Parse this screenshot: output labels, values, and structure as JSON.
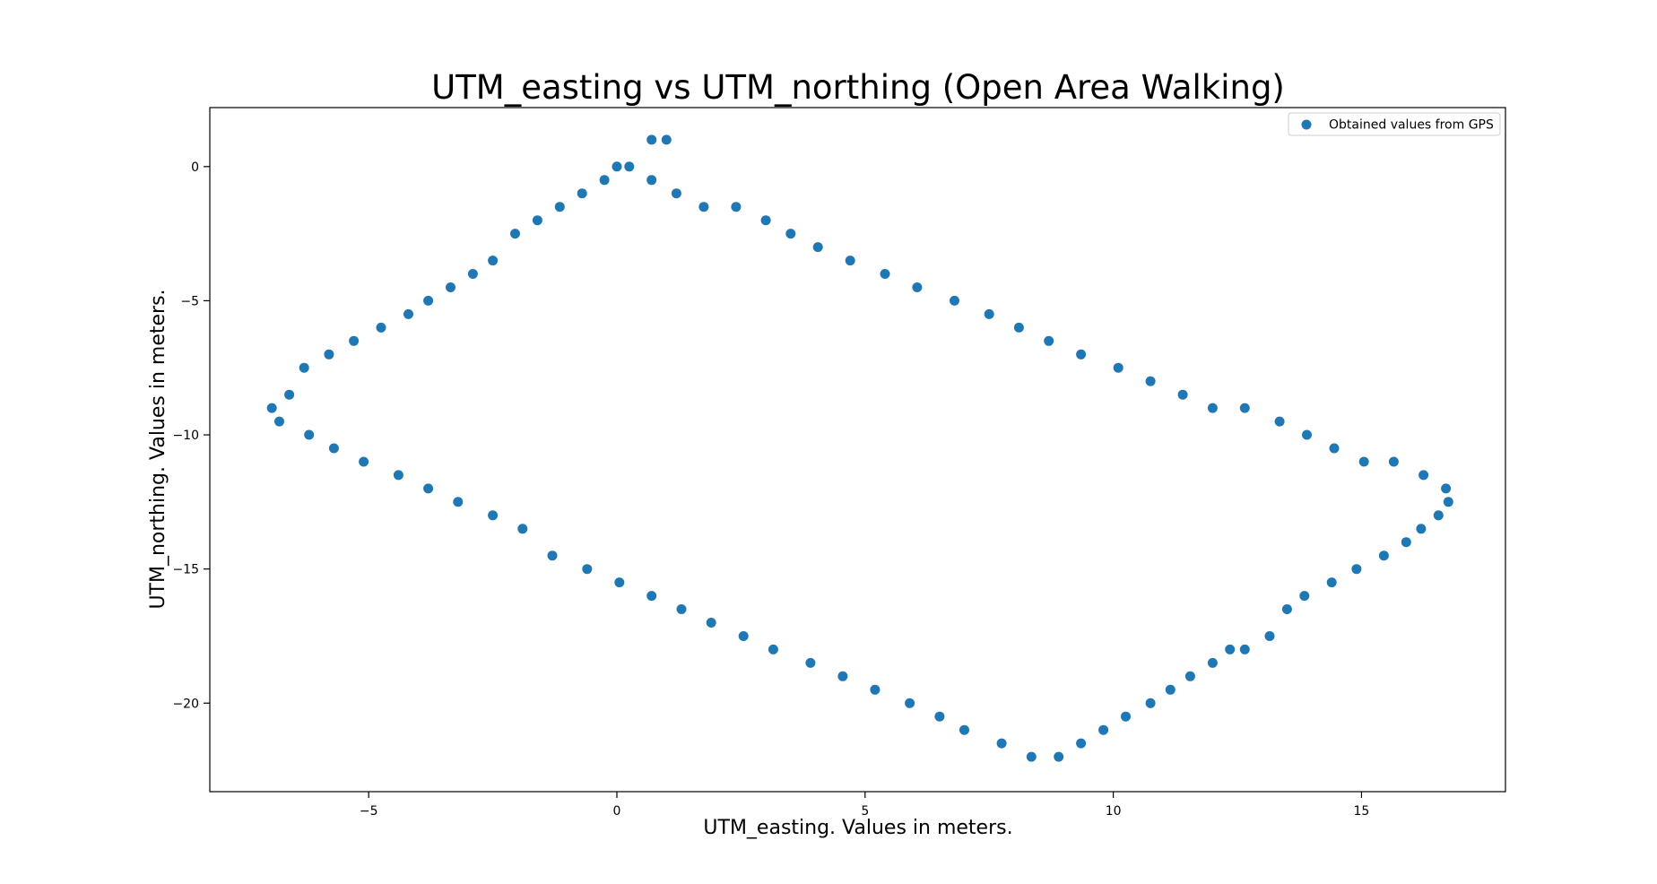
{
  "chart_data": {
    "type": "scatter",
    "title": "UTM_easting vs UTM_northing (Open Area Walking)",
    "xlabel": "UTM_easting. Values in meters.",
    "ylabel": "UTM_northing. Values in meters.",
    "xlim": [
      -8.2,
      17.9
    ],
    "ylim": [
      -23.3,
      2.2
    ],
    "xticks": [
      -5,
      0,
      5,
      10,
      15
    ],
    "yticks": [
      0,
      -5,
      -10,
      -15,
      -20
    ],
    "xtick_labels": [
      "−5",
      "0",
      "5",
      "10",
      "15"
    ],
    "ytick_labels": [
      "0",
      "−5",
      "−10",
      "−15",
      "−20"
    ],
    "grid": false,
    "legend_position": "top-right",
    "series": [
      {
        "name": "Obtained values from GPS",
        "color": "#1f77b4",
        "points": [
          [
            0.7,
            1.0
          ],
          [
            1.0,
            1.0
          ],
          [
            0.0,
            0.0
          ],
          [
            0.25,
            0.0
          ],
          [
            -0.25,
            -0.5
          ],
          [
            0.7,
            -0.5
          ],
          [
            -0.7,
            -1.0
          ],
          [
            1.2,
            -1.0
          ],
          [
            -1.15,
            -1.5
          ],
          [
            1.75,
            -1.5
          ],
          [
            2.4,
            -1.5
          ],
          [
            -1.6,
            -2.0
          ],
          [
            3.0,
            -2.0
          ],
          [
            -2.05,
            -2.5
          ],
          [
            3.5,
            -2.5
          ],
          [
            4.05,
            -3.0
          ],
          [
            -2.5,
            -3.5
          ],
          [
            4.7,
            -3.5
          ],
          [
            -2.9,
            -4.0
          ],
          [
            5.4,
            -4.0
          ],
          [
            -3.35,
            -4.5
          ],
          [
            6.05,
            -4.5
          ],
          [
            -3.8,
            -5.0
          ],
          [
            6.8,
            -5.0
          ],
          [
            -4.2,
            -5.5
          ],
          [
            7.5,
            -5.5
          ],
          [
            -4.75,
            -6.0
          ],
          [
            8.1,
            -6.0
          ],
          [
            -5.3,
            -6.5
          ],
          [
            8.7,
            -6.5
          ],
          [
            -5.8,
            -7.0
          ],
          [
            9.35,
            -7.0
          ],
          [
            -6.3,
            -7.5
          ],
          [
            10.1,
            -7.5
          ],
          [
            10.75,
            -8.0
          ],
          [
            -6.6,
            -8.5
          ],
          [
            11.4,
            -8.5
          ],
          [
            -6.95,
            -9.0
          ],
          [
            12.0,
            -9.0
          ],
          [
            12.65,
            -9.0
          ],
          [
            -6.8,
            -9.5
          ],
          [
            13.35,
            -9.5
          ],
          [
            -6.2,
            -10.0
          ],
          [
            13.9,
            -10.0
          ],
          [
            -5.7,
            -10.5
          ],
          [
            14.45,
            -10.5
          ],
          [
            -5.1,
            -11.0
          ],
          [
            15.05,
            -11.0
          ],
          [
            15.65,
            -11.0
          ],
          [
            -4.4,
            -11.5
          ],
          [
            16.25,
            -11.5
          ],
          [
            -3.8,
            -12.0
          ],
          [
            16.7,
            -12.0
          ],
          [
            -3.2,
            -12.5
          ],
          [
            16.75,
            -12.5
          ],
          [
            -2.5,
            -13.0
          ],
          [
            16.55,
            -13.0
          ],
          [
            -1.9,
            -13.5
          ],
          [
            16.2,
            -13.5
          ],
          [
            15.9,
            -14.0
          ],
          [
            -1.3,
            -14.5
          ],
          [
            15.45,
            -14.5
          ],
          [
            -0.6,
            -15.0
          ],
          [
            14.9,
            -15.0
          ],
          [
            0.05,
            -15.5
          ],
          [
            14.4,
            -15.5
          ],
          [
            0.7,
            -16.0
          ],
          [
            13.85,
            -16.0
          ],
          [
            1.3,
            -16.5
          ],
          [
            13.5,
            -16.5
          ],
          [
            1.9,
            -17.0
          ],
          [
            2.55,
            -17.5
          ],
          [
            13.15,
            -17.5
          ],
          [
            3.15,
            -18.0
          ],
          [
            12.35,
            -18.0
          ],
          [
            12.65,
            -18.0
          ],
          [
            3.9,
            -18.5
          ],
          [
            12.0,
            -18.5
          ],
          [
            4.55,
            -19.0
          ],
          [
            11.55,
            -19.0
          ],
          [
            5.2,
            -19.5
          ],
          [
            11.15,
            -19.5
          ],
          [
            5.9,
            -20.0
          ],
          [
            10.75,
            -20.0
          ],
          [
            6.5,
            -20.5
          ],
          [
            10.25,
            -20.5
          ],
          [
            7.0,
            -21.0
          ],
          [
            9.8,
            -21.0
          ],
          [
            7.75,
            -21.5
          ],
          [
            9.35,
            -21.5
          ],
          [
            8.35,
            -22.0
          ],
          [
            8.9,
            -22.0
          ]
        ]
      }
    ]
  }
}
